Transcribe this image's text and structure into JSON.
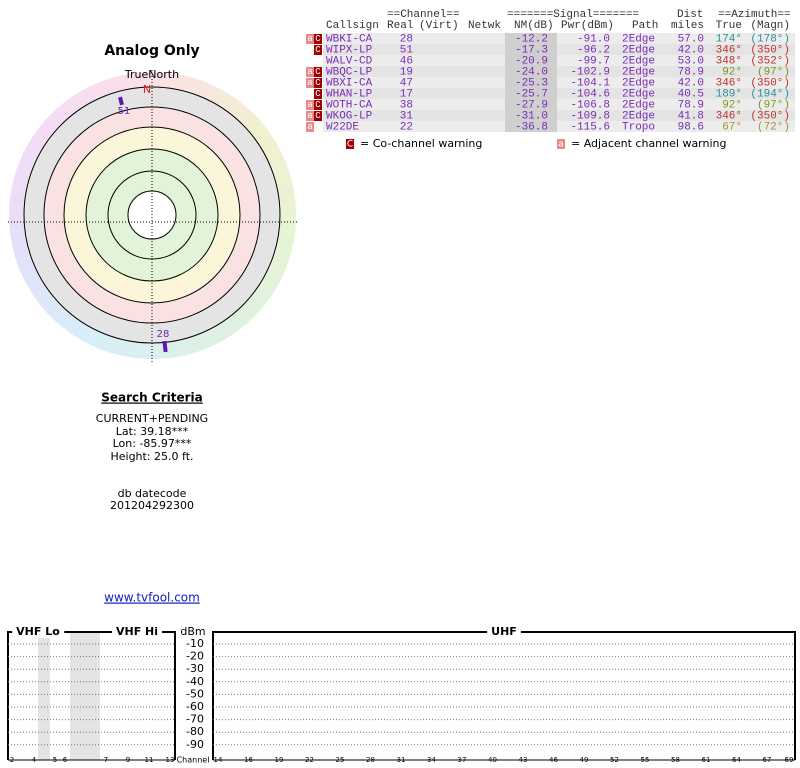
{
  "header": {
    "title": "Analog Only",
    "true_north": "TrueNorth",
    "north": "N"
  },
  "polar": {
    "markers": [
      {
        "label": "51"
      },
      {
        "label": "28"
      }
    ]
  },
  "table": {
    "group_headers": [
      "==Channel==",
      "=======Signal=======",
      "Dist",
      "==Azimuth=="
    ],
    "columns": [
      "Callsign",
      "Real",
      "(Virt)",
      "Netwk",
      "NM(dB)",
      "Pwr(dBm)",
      "Path",
      "miles",
      "True",
      "(Magn)"
    ],
    "rows": [
      {
        "flags": [
          "a",
          "C"
        ],
        "callsign": "WBKI-CA",
        "real": "28",
        "nm": "-12.2",
        "pwr": "-91.0",
        "path": "2Edge",
        "dist": "57.0",
        "true": "174°",
        "magn": "(178°)",
        "az_color": "#2f8c9c"
      },
      {
        "flags": [
          "C"
        ],
        "callsign": "WIPX-LP",
        "real": "51",
        "nm": "-17.3",
        "pwr": "-96.2",
        "path": "2Edge",
        "dist": "42.0",
        "true": "346°",
        "magn": "(350°)",
        "az_color": "#c0302a"
      },
      {
        "flags": [],
        "callsign": "WALV-CD",
        "real": "46",
        "nm": "-20.9",
        "pwr": "-99.7",
        "path": "2Edge",
        "dist": "53.0",
        "true": "348°",
        "magn": "(352°)",
        "az_color": "#c0302a"
      },
      {
        "flags": [
          "a",
          "C"
        ],
        "callsign": "WBQC-LP",
        "real": "19",
        "nm": "-24.0",
        "pwr": "-102.9",
        "path": "2Edge",
        "dist": "78.9",
        "true": "92°",
        "magn": "(97°)",
        "az_color": "#7a9a18"
      },
      {
        "flags": [
          "a",
          "C"
        ],
        "callsign": "WBXI-CA",
        "real": "47",
        "nm": "-25.3",
        "pwr": "-104.1",
        "path": "2Edge",
        "dist": "42.0",
        "true": "346°",
        "magn": "(350°)",
        "az_color": "#c0302a"
      },
      {
        "flags": [
          "C"
        ],
        "callsign": "WHAN-LP",
        "real": "17",
        "nm": "-25.7",
        "pwr": "-104.6",
        "path": "2Edge",
        "dist": "40.5",
        "true": "189°",
        "magn": "(194°)",
        "az_color": "#2f8c9c"
      },
      {
        "flags": [
          "a",
          "C"
        ],
        "callsign": "WOTH-CA",
        "real": "38",
        "nm": "-27.9",
        "pwr": "-106.8",
        "path": "2Edge",
        "dist": "78.9",
        "true": "92°",
        "magn": "(97°)",
        "az_color": "#7a9a18"
      },
      {
        "flags": [
          "a",
          "C"
        ],
        "callsign": "WKOG-LP",
        "real": "31",
        "nm": "-31.0",
        "pwr": "-109.8",
        "path": "2Edge",
        "dist": "41.8",
        "true": "346°",
        "magn": "(350°)",
        "az_color": "#c0302a"
      },
      {
        "flags": [
          "a"
        ],
        "callsign": "W22DE",
        "real": "22",
        "nm": "-36.8",
        "pwr": "-115.6",
        "path": "Tropo",
        "dist": "98.6",
        "true": "67°",
        "magn": "(72°)",
        "az_color": "#a89428"
      }
    ]
  },
  "legend": {
    "co_badge": "C",
    "co_text": "= Co-channel warning",
    "adj_badge": "a",
    "adj_text": "= Adjacent channel warning"
  },
  "search": {
    "title": "Search Criteria",
    "lines": [
      "CURRENT+PENDING",
      "Lat: 39.18***",
      "Lon: -85.97***",
      "Height: 25.0 ft."
    ],
    "datecode_label": "db datecode",
    "datecode": "201204292300",
    "link": "www.tvfool.com"
  },
  "spectrum": {
    "vhf_lo": "VHF Lo",
    "vhf_hi": "VHF Hi",
    "dbm": "dBm",
    "uhf": "UHF",
    "channel": "Channel",
    "dbm_ticks": [
      "-10",
      "-20",
      "-30",
      "-40",
      "-50",
      "-60",
      "-70",
      "-80",
      "-90"
    ],
    "vhf_channels": [
      "2",
      "4",
      "5",
      "6",
      "7",
      "9",
      "11",
      "13"
    ],
    "uhf_channels": [
      "14",
      "16",
      "19",
      "22",
      "25",
      "28",
      "31",
      "34",
      "37",
      "40",
      "43",
      "46",
      "49",
      "52",
      "55",
      "58",
      "61",
      "64",
      "67",
      "69"
    ]
  }
}
